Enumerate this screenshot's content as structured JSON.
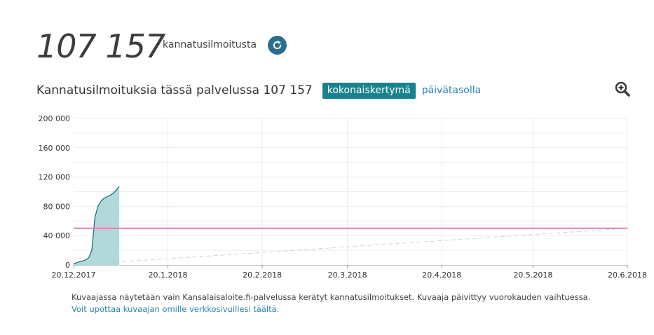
{
  "summary": {
    "total_count": "107 157",
    "total_label": "kannatusilmoitusta"
  },
  "chart_header": {
    "title": "Kannatusilmoituksia tässä palvelussa 107 157",
    "tab_cumulative": "kokonaiskertymä",
    "tab_daily": "päivätasolla"
  },
  "icons": {
    "refresh": "refresh-icon",
    "zoom": "zoom-in-icon"
  },
  "colors": {
    "area_fill": "#9ecfcf",
    "area_line": "#1f6f7a",
    "threshold_line": "#de7fb8",
    "tab_active": "#18828f",
    "link": "#2a84b8",
    "refresh_button": "#2a6f8d"
  },
  "chart_data": {
    "type": "area",
    "title": "",
    "xlabel": "",
    "ylabel": "",
    "x_range": [
      "2017-12-20",
      "2018-06-20"
    ],
    "ylim": [
      0,
      200000
    ],
    "y_ticks": [
      0,
      40000,
      80000,
      120000,
      160000,
      200000
    ],
    "y_tick_labels": [
      "0",
      "40 000",
      "80 000",
      "120 000",
      "160 000",
      "200 000"
    ],
    "x_ticks": [
      "2017-12-20",
      "2018-01-20",
      "2018-02-20",
      "2018-03-20",
      "2018-04-20",
      "2018-05-20",
      "2018-06-20"
    ],
    "x_tick_labels": [
      "20.12.2017",
      "20.1.2018",
      "20.2.2018",
      "20.3.2018",
      "20.4.2018",
      "20.5.2018",
      "20.6.2018"
    ],
    "grid": true,
    "series": [
      {
        "x": [
          "2017-12-20",
          "2017-12-21",
          "2017-12-22",
          "2017-12-23",
          "2017-12-24",
          "2017-12-25",
          "2017-12-26",
          "2017-12-27",
          "2017-12-28",
          "2017-12-29",
          "2017-12-30",
          "2017-12-31",
          "2018-01-01",
          "2018-01-02",
          "2018-01-03",
          "2018-01-04"
        ],
        "values": [
          1500,
          3000,
          4500,
          5500,
          7000,
          10000,
          20000,
          65000,
          80000,
          87000,
          91000,
          93000,
          95000,
          98000,
          102000,
          107157
        ]
      }
    ],
    "threshold": {
      "value": 50000
    },
    "trend": {
      "x": [
        "2017-12-20",
        "2018-06-20"
      ],
      "values": [
        0,
        50000
      ]
    }
  },
  "footnote": {
    "text": "Kuvaajassa näytetään vain Kansalaisaloite.fi-palvelussa kerätyt kannatusilmoitukset. Kuvaaja päivittyy vuorokauden vaihtuessa.",
    "embed_link": "Voit upottaa kuvaajan omille verkkosivuillesi täältä."
  }
}
